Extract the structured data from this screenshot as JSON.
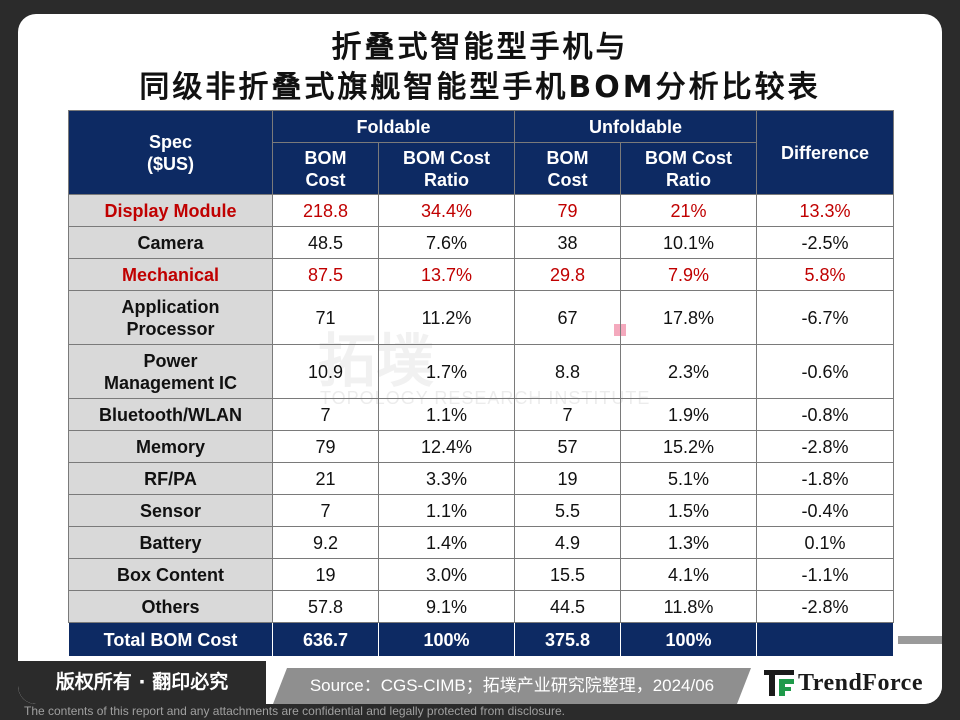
{
  "title": {
    "line1": "折叠式智能型手机与",
    "line2": "同级非折叠式旗舰智能型手机BOM分析比较表"
  },
  "watermark": {
    "chinese": "拓墣",
    "english": "TOPOLOGY RESEARCH INSTITUTE"
  },
  "table": {
    "headers": {
      "spec": "Spec\n($US)",
      "foldable": "Foldable",
      "unfoldable": "Unfoldable",
      "difference": "Difference",
      "bom_cost": "BOM\nCost",
      "bom_cost_ratio": "BOM Cost\nRatio"
    },
    "rows": [
      {
        "label": "Display Module",
        "highlight": true,
        "f_cost": "218.8",
        "f_ratio": "34.4%",
        "u_cost": "79",
        "u_ratio": "21%",
        "diff": "13.3%"
      },
      {
        "label": "Camera",
        "highlight": false,
        "f_cost": "48.5",
        "f_ratio": "7.6%",
        "u_cost": "38",
        "u_ratio": "10.1%",
        "diff": "-2.5%"
      },
      {
        "label": "Mechanical",
        "highlight": true,
        "f_cost": "87.5",
        "f_ratio": "13.7%",
        "u_cost": "29.8",
        "u_ratio": "7.9%",
        "diff": "5.8%"
      },
      {
        "label": "Application\nProcessor",
        "highlight": false,
        "f_cost": "71",
        "f_ratio": "11.2%",
        "u_cost": "67",
        "u_ratio": "17.8%",
        "diff": "-6.7%"
      },
      {
        "label": "Power\nManagement IC",
        "highlight": false,
        "f_cost": "10.9",
        "f_ratio": "1.7%",
        "u_cost": "8.8",
        "u_ratio": "2.3%",
        "diff": "-0.6%"
      },
      {
        "label": "Bluetooth/WLAN",
        "highlight": false,
        "f_cost": "7",
        "f_ratio": "1.1%",
        "u_cost": "7",
        "u_ratio": "1.9%",
        "diff": "-0.8%"
      },
      {
        "label": "Memory",
        "highlight": false,
        "f_cost": "79",
        "f_ratio": "12.4%",
        "u_cost": "57",
        "u_ratio": "15.2%",
        "diff": "-2.8%"
      },
      {
        "label": "RF/PA",
        "highlight": false,
        "f_cost": "21",
        "f_ratio": "3.3%",
        "u_cost": "19",
        "u_ratio": "5.1%",
        "diff": "-1.8%"
      },
      {
        "label": "Sensor",
        "highlight": false,
        "f_cost": "7",
        "f_ratio": "1.1%",
        "u_cost": "5.5",
        "u_ratio": "1.5%",
        "diff": "-0.4%"
      },
      {
        "label": "Battery",
        "highlight": false,
        "f_cost": "9.2",
        "f_ratio": "1.4%",
        "u_cost": "4.9",
        "u_ratio": "1.3%",
        "diff": "0.1%"
      },
      {
        "label": "Box Content",
        "highlight": false,
        "f_cost": "19",
        "f_ratio": "3.0%",
        "u_cost": "15.5",
        "u_ratio": "4.1%",
        "diff": "-1.1%"
      },
      {
        "label": "Others",
        "highlight": false,
        "f_cost": "57.8",
        "f_ratio": "9.1%",
        "u_cost": "44.5",
        "u_ratio": "11.8%",
        "diff": "-2.8%"
      }
    ],
    "total": {
      "label": "Total BOM Cost",
      "f_cost": "636.7",
      "f_ratio": "100%",
      "u_cost": "375.8",
      "u_ratio": "100%",
      "diff": ""
    }
  },
  "footer": {
    "copyright": "版权所有 · 翻印必究",
    "source": "Source：CGS-CIMB；拓墣产业研究院整理，2024/06",
    "logo_text": "TrendForce",
    "disclaimer": "The contents of this report and any attachments are confidential and legally protected from disclosure."
  },
  "colors": {
    "header_navy": "#0d2a63",
    "label_grey": "#d9d9d9",
    "highlight_red": "#c00000",
    "logo_green": "#1f9a4a"
  }
}
